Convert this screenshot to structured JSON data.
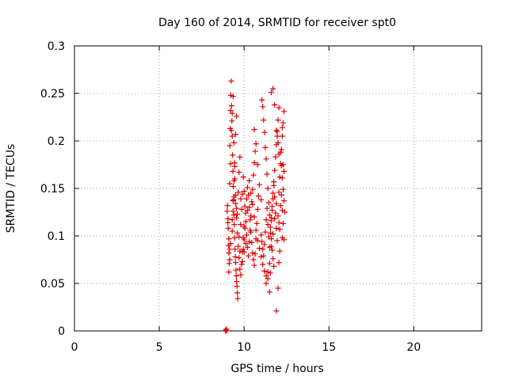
{
  "chart_data": {
    "type": "scatter",
    "title": "Day 160 of 2014, SRMTID for receiver spt0",
    "xlabel": "GPS time / hours",
    "ylabel": "SRMTID / TECUs",
    "xlim": [
      0,
      24
    ],
    "ylim": [
      0,
      0.3
    ],
    "xticks": [
      0,
      5,
      10,
      15,
      20
    ],
    "yticks": [
      0,
      0.05,
      0.1,
      0.15,
      0.2,
      0.25,
      0.3
    ],
    "xtick_labels": [
      "0",
      "5",
      "10",
      "15",
      "20"
    ],
    "ytick_labels": [
      "0",
      "0.05",
      "0.1",
      "0.15",
      "0.2",
      "0.25",
      "0.3"
    ],
    "grid": true,
    "marker": "+",
    "series_color": "#e00000",
    "series": [
      {
        "points": [
          [
            8.9,
            0.0
          ],
          [
            8.92,
            0.001
          ],
          [
            8.95,
            0.002
          ],
          [
            8.97,
            0.0
          ],
          [
            9.0,
            0.126
          ],
          [
            9.02,
            0.132
          ],
          [
            9.04,
            0.114
          ],
          [
            9.06,
            0.108
          ],
          [
            9.08,
            0.09
          ],
          [
            9.1,
            0.082
          ],
          [
            9.12,
            0.071
          ],
          [
            9.14,
            0.086
          ],
          [
            9.16,
            0.195
          ],
          [
            9.18,
            0.213
          ],
          [
            9.2,
            0.232
          ],
          [
            9.22,
            0.248
          ],
          [
            9.24,
            0.263
          ],
          [
            9.26,
            0.237
          ],
          [
            9.28,
            0.221
          ],
          [
            9.3,
            0.205
          ],
          [
            9.32,
            0.185
          ],
          [
            9.34,
            0.168
          ],
          [
            9.36,
            0.152
          ],
          [
            9.38,
            0.138
          ],
          [
            9.4,
            0.122
          ],
          [
            9.42,
            0.112
          ],
          [
            9.44,
            0.098
          ],
          [
            9.46,
            0.086
          ],
          [
            9.48,
            0.078
          ],
          [
            9.5,
            0.072
          ],
          [
            9.52,
            0.064
          ],
          [
            9.54,
            0.058
          ],
          [
            9.56,
            0.052
          ],
          [
            9.58,
            0.047
          ],
          [
            9.6,
            0.04
          ],
          [
            9.62,
            0.034
          ],
          [
            9.05,
            0.118
          ],
          [
            9.1,
            0.097
          ],
          [
            9.15,
            0.155
          ],
          [
            9.2,
            0.176
          ],
          [
            9.25,
            0.211
          ],
          [
            9.3,
            0.229
          ],
          [
            9.35,
            0.247
          ],
          [
            9.4,
            0.198
          ],
          [
            9.45,
            0.173
          ],
          [
            9.5,
            0.143
          ],
          [
            9.55,
            0.129
          ],
          [
            9.6,
            0.103
          ],
          [
            9.65,
            0.089
          ],
          [
            9.7,
            0.077
          ],
          [
            9.75,
            0.065
          ],
          [
            9.8,
            0.059
          ],
          [
            9.85,
            0.07
          ],
          [
            9.9,
            0.083
          ],
          [
            9.95,
            0.098
          ],
          [
            10.0,
            0.11
          ],
          [
            9.1,
            0.062
          ],
          [
            9.15,
            0.075
          ],
          [
            9.2,
            0.092
          ],
          [
            9.3,
            0.117
          ],
          [
            9.35,
            0.137
          ],
          [
            9.4,
            0.158
          ],
          [
            9.45,
            0.177
          ],
          [
            9.5,
            0.207
          ],
          [
            9.55,
            0.226
          ],
          [
            9.3,
            0.105
          ],
          [
            9.35,
            0.126
          ],
          [
            9.4,
            0.141
          ],
          [
            9.45,
            0.16
          ],
          [
            9.5,
            0.134
          ],
          [
            9.55,
            0.119
          ],
          [
            9.6,
            0.123
          ],
          [
            9.65,
            0.146
          ],
          [
            9.7,
            0.167
          ],
          [
            9.75,
            0.183
          ],
          [
            9.8,
            0.139
          ],
          [
            9.7,
            0.099
          ],
          [
            9.75,
            0.084
          ],
          [
            9.8,
            0.112
          ],
          [
            9.85,
            0.128
          ],
          [
            9.9,
            0.144
          ],
          [
            9.95,
            0.162
          ],
          [
            10.0,
            0.147
          ],
          [
            10.05,
            0.131
          ],
          [
            10.1,
            0.115
          ],
          [
            10.15,
            0.101
          ],
          [
            10.2,
            0.088
          ],
          [
            10.25,
            0.079
          ],
          [
            10.3,
            0.094
          ],
          [
            10.35,
            0.106
          ],
          [
            10.4,
            0.121
          ],
          [
            10.45,
            0.136
          ],
          [
            10.5,
            0.149
          ],
          [
            10.55,
            0.164
          ],
          [
            10.6,
            0.177
          ],
          [
            10.65,
            0.189
          ],
          [
            9.9,
            0.073
          ],
          [
            9.95,
            0.086
          ],
          [
            10.0,
            0.096
          ],
          [
            10.05,
            0.108
          ],
          [
            10.1,
            0.124
          ],
          [
            10.15,
            0.139
          ],
          [
            10.2,
            0.151
          ],
          [
            10.25,
            0.143
          ],
          [
            10.3,
            0.13
          ],
          [
            10.35,
            0.117
          ],
          [
            10.4,
            0.104
          ],
          [
            10.45,
            0.093
          ],
          [
            10.5,
            0.082
          ],
          [
            10.55,
            0.075
          ],
          [
            10.6,
            0.069
          ],
          [
            10.65,
            0.081
          ],
          [
            10.7,
            0.097
          ],
          [
            10.75,
            0.113
          ],
          [
            10.8,
            0.128
          ],
          [
            10.85,
            0.142
          ],
          [
            10.0,
            0.083
          ],
          [
            10.1,
            0.092
          ],
          [
            10.2,
            0.127
          ],
          [
            10.3,
            0.158
          ],
          [
            10.4,
            0.145
          ],
          [
            10.5,
            0.133
          ],
          [
            10.6,
            0.12
          ],
          [
            10.7,
            0.106
          ],
          [
            10.8,
            0.095
          ],
          [
            10.9,
            0.087
          ],
          [
            11.0,
            0.078
          ],
          [
            11.1,
            0.07
          ],
          [
            11.2,
            0.063
          ],
          [
            11.3,
            0.058
          ],
          [
            11.4,
            0.062
          ],
          [
            11.5,
            0.071
          ],
          [
            11.6,
            0.089
          ],
          [
            11.7,
            0.102
          ],
          [
            11.8,
            0.118
          ],
          [
            11.9,
            0.134
          ],
          [
            10.6,
            0.212
          ],
          [
            10.7,
            0.197
          ],
          [
            10.8,
            0.175
          ],
          [
            10.9,
            0.154
          ],
          [
            11.0,
            0.138
          ],
          [
            11.05,
            0.243
          ],
          [
            11.1,
            0.236
          ],
          [
            11.15,
            0.222
          ],
          [
            11.2,
            0.209
          ],
          [
            11.25,
            0.193
          ],
          [
            11.3,
            0.181
          ],
          [
            11.35,
            0.165
          ],
          [
            11.4,
            0.15
          ],
          [
            11.45,
            0.135
          ],
          [
            11.5,
            0.122
          ],
          [
            11.55,
            0.109
          ],
          [
            11.6,
            0.097
          ],
          [
            11.65,
            0.085
          ],
          [
            11.7,
            0.076
          ],
          [
            11.75,
            0.068
          ],
          [
            11.0,
            0.101
          ],
          [
            11.05,
            0.094
          ],
          [
            11.1,
            0.086
          ],
          [
            11.15,
            0.079
          ],
          [
            11.2,
            0.091
          ],
          [
            11.25,
            0.104
          ],
          [
            11.3,
            0.117
          ],
          [
            11.35,
            0.129
          ],
          [
            11.4,
            0.112
          ],
          [
            11.45,
            0.099
          ],
          [
            11.5,
            0.088
          ],
          [
            11.55,
            0.103
          ],
          [
            11.6,
            0.116
          ],
          [
            11.65,
            0.127
          ],
          [
            11.7,
            0.139
          ],
          [
            11.75,
            0.153
          ],
          [
            11.8,
            0.141
          ],
          [
            11.85,
            0.124
          ],
          [
            11.9,
            0.108
          ],
          [
            11.95,
            0.095
          ],
          [
            11.3,
            0.05
          ],
          [
            11.4,
            0.055
          ],
          [
            11.5,
            0.041
          ],
          [
            11.55,
            0.061
          ],
          [
            11.6,
            0.119
          ],
          [
            11.65,
            0.131
          ],
          [
            11.7,
            0.145
          ],
          [
            11.75,
            0.157
          ],
          [
            11.8,
            0.169
          ],
          [
            11.85,
            0.183
          ],
          [
            11.9,
            0.196
          ],
          [
            11.95,
            0.21
          ],
          [
            12.0,
            0.222
          ],
          [
            12.05,
            0.235
          ],
          [
            11.6,
            0.251
          ],
          [
            11.7,
            0.255
          ],
          [
            11.8,
            0.238
          ],
          [
            11.9,
            0.211
          ],
          [
            12.0,
            0.198
          ],
          [
            12.05,
            0.186
          ],
          [
            11.9,
            0.021
          ],
          [
            12.0,
            0.045
          ],
          [
            12.05,
            0.072
          ],
          [
            12.1,
            0.084
          ],
          [
            12.1,
            0.162
          ],
          [
            12.15,
            0.176
          ],
          [
            12.2,
            0.191
          ],
          [
            12.25,
            0.205
          ],
          [
            12.3,
            0.219
          ],
          [
            12.35,
            0.231
          ],
          [
            12.2,
            0.143
          ],
          [
            12.25,
            0.127
          ],
          [
            12.3,
            0.113
          ],
          [
            12.35,
            0.096
          ],
          [
            12.3,
            0.175
          ],
          [
            12.35,
            0.168
          ],
          [
            12.25,
            0.098
          ],
          [
            12.15,
            0.132
          ],
          [
            12.05,
            0.146
          ],
          [
            11.95,
            0.205
          ],
          [
            12.0,
            0.121
          ],
          [
            12.05,
            0.114
          ],
          [
            12.1,
            0.107
          ],
          [
            12.15,
            0.188
          ],
          [
            12.2,
            0.174
          ],
          [
            12.25,
            0.161
          ],
          [
            12.3,
            0.149
          ],
          [
            12.35,
            0.137
          ],
          [
            12.4,
            0.125
          ],
          [
            12.25,
            0.214
          ]
        ]
      }
    ]
  }
}
